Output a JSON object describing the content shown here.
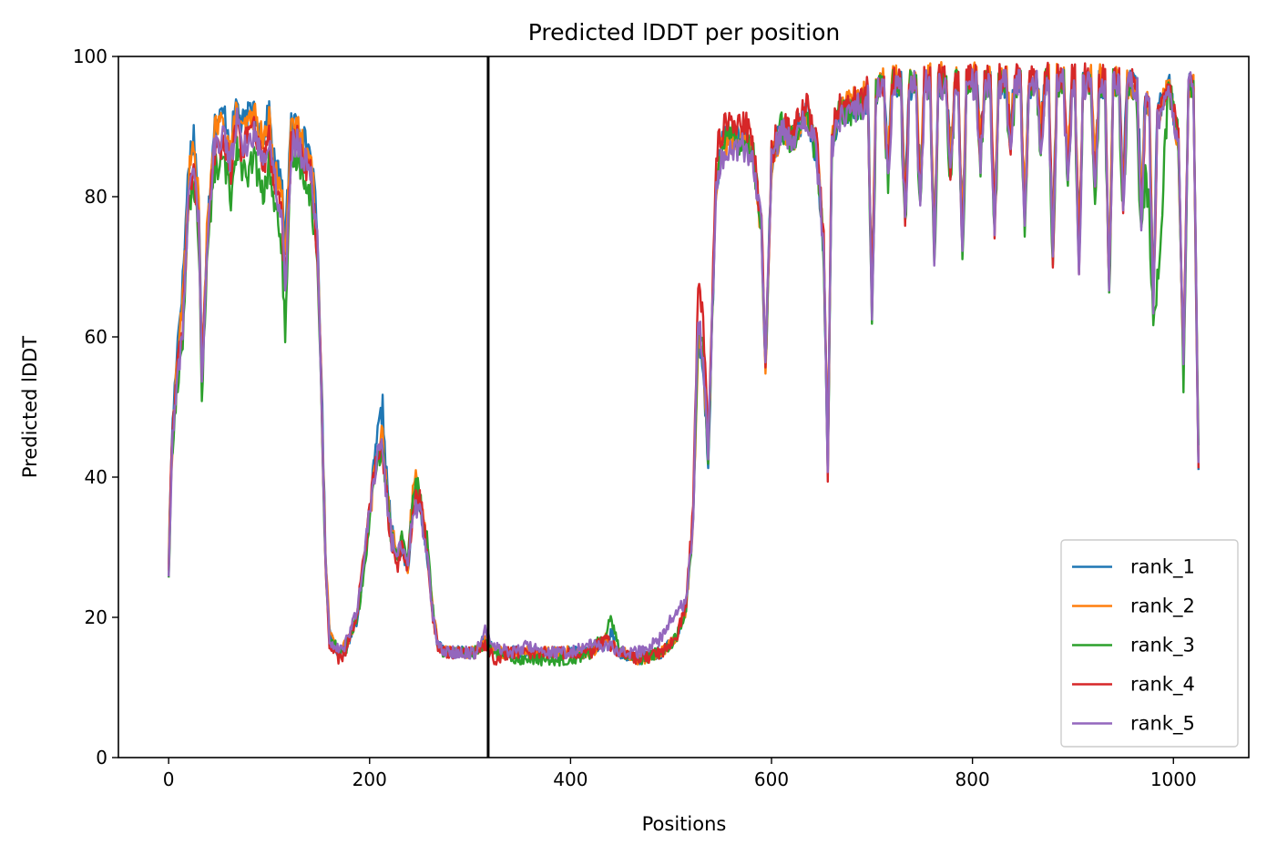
{
  "chart_data": {
    "type": "line",
    "title": "Predicted lDDT per position",
    "xlabel": "Positions",
    "ylabel": "Predicted lDDT",
    "xlim": [
      -50,
      1075
    ],
    "ylim": [
      0,
      100
    ],
    "xticks": [
      0,
      200,
      400,
      600,
      800,
      1000
    ],
    "yticks": [
      0,
      20,
      40,
      60,
      80,
      100
    ],
    "grid": false,
    "legend_position": "lower-right",
    "vertical_line_x": 318,
    "colors": [
      "#1f77b4",
      "#ff7f0e",
      "#2ca02c",
      "#d62728",
      "#9467bd"
    ],
    "anchors_x": [
      0,
      3,
      8,
      14,
      20,
      25,
      30,
      33,
      38,
      45,
      55,
      62,
      68,
      72,
      78,
      85,
      90,
      95,
      100,
      105,
      112,
      116,
      122,
      128,
      135,
      142,
      148,
      152,
      156,
      160,
      165,
      170,
      175,
      180,
      188,
      195,
      202,
      208,
      213,
      217,
      222,
      228,
      232,
      238,
      243,
      248,
      253,
      258,
      263,
      268,
      275,
      285,
      295,
      305,
      315,
      325,
      340,
      360,
      380,
      400,
      420,
      435,
      440,
      450,
      470,
      490,
      505,
      515,
      522,
      527,
      532,
      537,
      545,
      552,
      560,
      568,
      575,
      582,
      590,
      594,
      600,
      610,
      620,
      635,
      645,
      652,
      656,
      660,
      668,
      675,
      690,
      700,
      720,
      760,
      800,
      840,
      880,
      920,
      960,
      985,
      995,
      1005,
      1010,
      1015,
      1020,
      1025
    ],
    "series": [
      {
        "name": "rank_1",
        "values": [
          28,
          45,
          58,
          68,
          85,
          89,
          80,
          55,
          75,
          90,
          92,
          88,
          94,
          90,
          91,
          93,
          90,
          89,
          92,
          85,
          82,
          75,
          90,
          91,
          88,
          86,
          75,
          55,
          30,
          18,
          16,
          15,
          15,
          17,
          20,
          28,
          38,
          46,
          50,
          40,
          32,
          28,
          30,
          26,
          36,
          37,
          34,
          28,
          20,
          16,
          15,
          15,
          15,
          15,
          17,
          15,
          15,
          15,
          15,
          15,
          15,
          16,
          18,
          15,
          14,
          15,
          17,
          22,
          35,
          60,
          55,
          42,
          82,
          88,
          89,
          88,
          89,
          86,
          75,
          55,
          85,
          90,
          88,
          92,
          86,
          72,
          40,
          88,
          92,
          92,
          93,
          95,
          96,
          96,
          96,
          96,
          96,
          96,
          96,
          92,
          96,
          88,
          56,
          96,
          96,
          40
        ]
      },
      {
        "name": "rank_2",
        "values": [
          27,
          43,
          56,
          65,
          83,
          87,
          79,
          55,
          74,
          89,
          91,
          86,
          93,
          89,
          90,
          92,
          89,
          88,
          91,
          84,
          81,
          73,
          89,
          90,
          87,
          85,
          74,
          54,
          30,
          18,
          16,
          15,
          16,
          17,
          21,
          29,
          37,
          44,
          46,
          38,
          32,
          28,
          31,
          27,
          38,
          40,
          35,
          29,
          21,
          16,
          15,
          15,
          15,
          15,
          17,
          15,
          15,
          15,
          15,
          15,
          15,
          17,
          16,
          15,
          14,
          15,
          17,
          21,
          34,
          60,
          57,
          43,
          82,
          88,
          88,
          88,
          88,
          86,
          75,
          55,
          85,
          90,
          88,
          92,
          87,
          73,
          42,
          88,
          92,
          93,
          94,
          96,
          97,
          97,
          97,
          97,
          97,
          97,
          96,
          92,
          96,
          88,
          55,
          96,
          96,
          42
        ]
      },
      {
        "name": "rank_3",
        "values": [
          26,
          42,
          52,
          60,
          78,
          82,
          74,
          52,
          70,
          84,
          85,
          80,
          88,
          85,
          82,
          86,
          82,
          80,
          85,
          79,
          74,
          60,
          85,
          86,
          83,
          80,
          70,
          52,
          28,
          17,
          16,
          15,
          15,
          17,
          20,
          27,
          36,
          42,
          44,
          38,
          31,
          29,
          31,
          28,
          37,
          39,
          35,
          30,
          21,
          16,
          15,
          15,
          15,
          15,
          16,
          15,
          14,
          14,
          14,
          14,
          15,
          18,
          20,
          15,
          14,
          15,
          17,
          21,
          34,
          62,
          58,
          43,
          83,
          88,
          89,
          88,
          88,
          86,
          75,
          55,
          85,
          90,
          88,
          92,
          86,
          72,
          41,
          87,
          92,
          92,
          93,
          95,
          96,
          96,
          96,
          96,
          96,
          96,
          96,
          68,
          96,
          88,
          53,
          96,
          96,
          44
        ]
      },
      {
        "name": "rank_4",
        "values": [
          27,
          44,
          54,
          62,
          80,
          84,
          76,
          54,
          72,
          86,
          88,
          84,
          91,
          87,
          88,
          90,
          86,
          85,
          88,
          82,
          78,
          68,
          87,
          88,
          85,
          83,
          72,
          53,
          28,
          16,
          15,
          14,
          15,
          17,
          21,
          30,
          38,
          43,
          44,
          37,
          30,
          27,
          30,
          27,
          35,
          38,
          34,
          28,
          20,
          16,
          15,
          15,
          15,
          15,
          16,
          14,
          15,
          15,
          15,
          15,
          15,
          17,
          16,
          15,
          14,
          15,
          17,
          22,
          36,
          68,
          62,
          45,
          86,
          90,
          90,
          90,
          90,
          87,
          76,
          56,
          86,
          91,
          89,
          93,
          88,
          74,
          41,
          89,
          93,
          93,
          94,
          96,
          97,
          97,
          97,
          97,
          97,
          97,
          96,
          91,
          96,
          88,
          57,
          96,
          96,
          41
        ]
      },
      {
        "name": "rank_5",
        "values": [
          26,
          43,
          53,
          61,
          81,
          85,
          77,
          53,
          73,
          87,
          89,
          85,
          91,
          88,
          87,
          89,
          87,
          86,
          89,
          83,
          78,
          67,
          87,
          88,
          85,
          84,
          73,
          53,
          29,
          17,
          16,
          15,
          16,
          18,
          21,
          29,
          37,
          43,
          45,
          37,
          31,
          29,
          31,
          28,
          35,
          36,
          33,
          28,
          20,
          16,
          15,
          15,
          15,
          15,
          18,
          16,
          15,
          16,
          15,
          15,
          16,
          16,
          16,
          15,
          15,
          17,
          21,
          22,
          34,
          63,
          57,
          44,
          82,
          86,
          87,
          87,
          87,
          85,
          75,
          55,
          85,
          89,
          88,
          91,
          86,
          72,
          42,
          87,
          91,
          92,
          93,
          95,
          96,
          96,
          96,
          96,
          96,
          96,
          96,
          91,
          96,
          87,
          57,
          96,
          96,
          42
        ]
      }
    ],
    "dips": [
      {
        "x": 700,
        "r": 66
      },
      {
        "x": 716,
        "r": 86
      },
      {
        "x": 733,
        "r": 79
      },
      {
        "x": 748,
        "r": 82
      },
      {
        "x": 762,
        "r": 74
      },
      {
        "x": 778,
        "r": 86
      },
      {
        "x": 790,
        "r": 75
      },
      {
        "x": 808,
        "r": 88
      },
      {
        "x": 822,
        "r": 78
      },
      {
        "x": 838,
        "r": 90
      },
      {
        "x": 852,
        "r": 79
      },
      {
        "x": 868,
        "r": 91
      },
      {
        "x": 880,
        "r": 74
      },
      {
        "x": 895,
        "r": 86
      },
      {
        "x": 906,
        "r": 73
      },
      {
        "x": 922,
        "r": 84
      },
      {
        "x": 936,
        "r": 69
      },
      {
        "x": 950,
        "r": 82
      },
      {
        "x": 968,
        "r": 80
      },
      {
        "x": 980,
        "r": 67
      }
    ]
  }
}
